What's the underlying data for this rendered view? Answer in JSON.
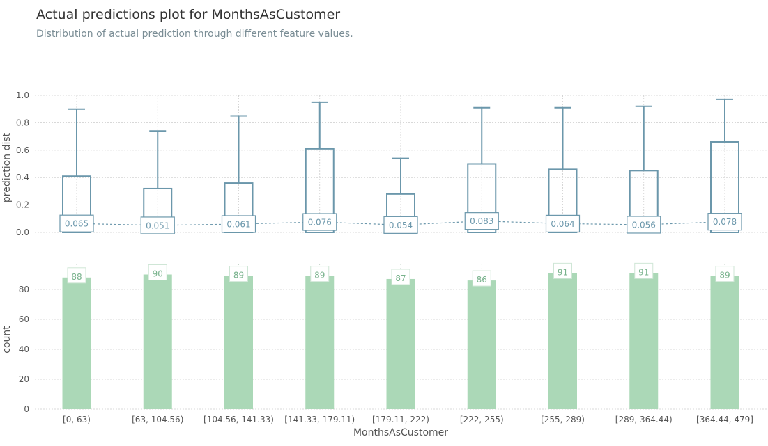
{
  "title": "Actual predictions plot for MonthsAsCustomer",
  "subtitle": "Distribution of actual prediction through different feature values.",
  "colors": {
    "box": "#6b97ab",
    "bar": "#abd8b7",
    "bar_label": "#78b28c",
    "grid": "#cccccc",
    "axis_text": "#555555"
  },
  "chart_data": [
    {
      "type": "box",
      "title": "",
      "xlabel": "",
      "ylabel": "prediction dist",
      "ylim": [
        0,
        1
      ],
      "yticks": [
        "0.0",
        "0.2",
        "0.4",
        "0.6",
        "0.8",
        "1.0"
      ],
      "categories": [
        "[0, 63)",
        "[63, 104.56)",
        "[104.56, 141.33)",
        "[141.33, 179.11)",
        "[179.11, 222)",
        "[222, 255)",
        "[255, 289)",
        "[289, 364.44)",
        "[364.44, 479]"
      ],
      "q3": [
        0.41,
        0.32,
        0.36,
        0.61,
        0.28,
        0.5,
        0.46,
        0.45,
        0.66
      ],
      "whisker_high": [
        0.9,
        0.74,
        0.85,
        0.95,
        0.54,
        0.91,
        0.91,
        0.92,
        0.97
      ],
      "mean": [
        0.065,
        0.051,
        0.061,
        0.076,
        0.054,
        0.083,
        0.064,
        0.056,
        0.078
      ],
      "mean_labels": [
        "0.065",
        "0.051",
        "0.061",
        "0.076",
        "0.054",
        "0.083",
        "0.064",
        "0.056",
        "0.078"
      ],
      "grid": true
    },
    {
      "type": "bar",
      "title": "",
      "xlabel": "MonthsAsCustomer",
      "ylabel": "count",
      "ylim": [
        0,
        95
      ],
      "yticks": [
        "0",
        "20",
        "40",
        "60",
        "80"
      ],
      "categories": [
        "[0, 63)",
        "[63, 104.56)",
        "[104.56, 141.33)",
        "[141.33, 179.11)",
        "[179.11, 222)",
        "[222, 255)",
        "[255, 289)",
        "[289, 364.44)",
        "[364.44, 479]"
      ],
      "values": [
        88,
        90,
        89,
        89,
        87,
        86,
        91,
        91,
        89
      ],
      "value_labels": [
        "88",
        "90",
        "89",
        "89",
        "87",
        "86",
        "91",
        "91",
        "89"
      ],
      "grid": true
    }
  ]
}
